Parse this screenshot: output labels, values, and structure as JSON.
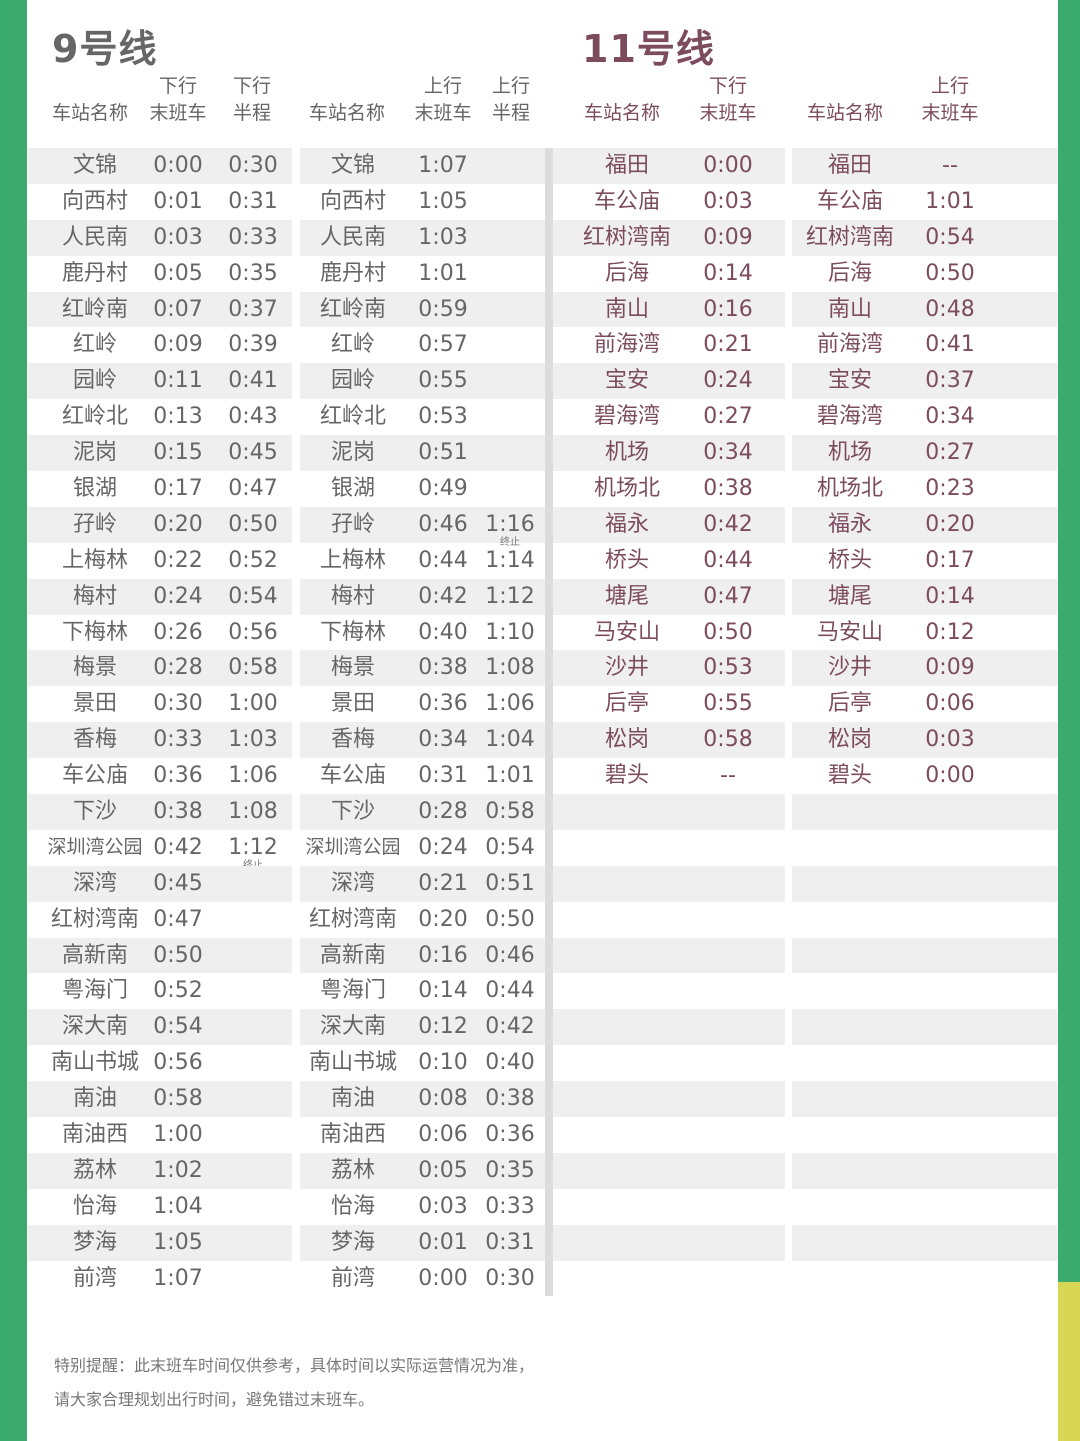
{
  "colors": {
    "green": "#3aaa6e",
    "yellow": "#d8d655",
    "line9": "#666666",
    "line11": "#7c4c5e",
    "row_shade": "#efefef"
  },
  "line9": {
    "title": "9号线",
    "down_headers": {
      "name": "车站名称",
      "last_top": "下行",
      "last": "末班车",
      "half_top": "下行",
      "half": "半程"
    },
    "up_headers": {
      "name": "车站名称",
      "last_top": "上行",
      "last": "末班车",
      "half_top": "上行",
      "half": "半程"
    },
    "terminate_label": "终止",
    "down_rows": [
      [
        "文锦",
        "0:00",
        "0:30"
      ],
      [
        "向西村",
        "0:01",
        "0:31"
      ],
      [
        "人民南",
        "0:03",
        "0:33"
      ],
      [
        "鹿丹村",
        "0:05",
        "0:35"
      ],
      [
        "红岭南",
        "0:07",
        "0:37"
      ],
      [
        "红岭",
        "0:09",
        "0:39"
      ],
      [
        "园岭",
        "0:11",
        "0:41"
      ],
      [
        "红岭北",
        "0:13",
        "0:43"
      ],
      [
        "泥岗",
        "0:15",
        "0:45"
      ],
      [
        "银湖",
        "0:17",
        "0:47"
      ],
      [
        "孖岭",
        "0:20",
        "0:50"
      ],
      [
        "上梅林",
        "0:22",
        "0:52"
      ],
      [
        "梅村",
        "0:24",
        "0:54"
      ],
      [
        "下梅林",
        "0:26",
        "0:56"
      ],
      [
        "梅景",
        "0:28",
        "0:58"
      ],
      [
        "景田",
        "0:30",
        "1:00"
      ],
      [
        "香梅",
        "0:33",
        "1:03"
      ],
      [
        "车公庙",
        "0:36",
        "1:06"
      ],
      [
        "下沙",
        "0:38",
        "1:08"
      ],
      [
        "深圳湾公园",
        "0:42",
        "1:12",
        "终止"
      ],
      [
        "深湾",
        "0:45",
        ""
      ],
      [
        "红树湾南",
        "0:47",
        ""
      ],
      [
        "高新南",
        "0:50",
        ""
      ],
      [
        "粤海门",
        "0:52",
        ""
      ],
      [
        "深大南",
        "0:54",
        ""
      ],
      [
        "南山书城",
        "0:56",
        ""
      ],
      [
        "南油",
        "0:58",
        ""
      ],
      [
        "南油西",
        "1:00",
        ""
      ],
      [
        "荔林",
        "1:02",
        ""
      ],
      [
        "怡海",
        "1:04",
        ""
      ],
      [
        "梦海",
        "1:05",
        ""
      ],
      [
        "前湾",
        "1:07",
        ""
      ]
    ],
    "up_rows": [
      [
        "文锦",
        "1:07",
        ""
      ],
      [
        "向西村",
        "1:05",
        ""
      ],
      [
        "人民南",
        "1:03",
        ""
      ],
      [
        "鹿丹村",
        "1:01",
        ""
      ],
      [
        "红岭南",
        "0:59",
        ""
      ],
      [
        "红岭",
        "0:57",
        ""
      ],
      [
        "园岭",
        "0:55",
        ""
      ],
      [
        "红岭北",
        "0:53",
        ""
      ],
      [
        "泥岗",
        "0:51",
        ""
      ],
      [
        "银湖",
        "0:49",
        ""
      ],
      [
        "孖岭",
        "0:46",
        "1:16",
        "终止"
      ],
      [
        "上梅林",
        "0:44",
        "1:14"
      ],
      [
        "梅村",
        "0:42",
        "1:12"
      ],
      [
        "下梅林",
        "0:40",
        "1:10"
      ],
      [
        "梅景",
        "0:38",
        "1:08"
      ],
      [
        "景田",
        "0:36",
        "1:06"
      ],
      [
        "香梅",
        "0:34",
        "1:04"
      ],
      [
        "车公庙",
        "0:31",
        "1:01"
      ],
      [
        "下沙",
        "0:28",
        "0:58"
      ],
      [
        "深圳湾公园",
        "0:24",
        "0:54"
      ],
      [
        "深湾",
        "0:21",
        "0:51"
      ],
      [
        "红树湾南",
        "0:20",
        "0:50"
      ],
      [
        "高新南",
        "0:16",
        "0:46"
      ],
      [
        "粤海门",
        "0:14",
        "0:44"
      ],
      [
        "深大南",
        "0:12",
        "0:42"
      ],
      [
        "南山书城",
        "0:10",
        "0:40"
      ],
      [
        "南油",
        "0:08",
        "0:38"
      ],
      [
        "南油西",
        "0:06",
        "0:36"
      ],
      [
        "荔林",
        "0:05",
        "0:35"
      ],
      [
        "怡海",
        "0:03",
        "0:33"
      ],
      [
        "梦海",
        "0:01",
        "0:31"
      ],
      [
        "前湾",
        "0:00",
        "0:30"
      ]
    ]
  },
  "line11": {
    "title": "11号线",
    "down_headers": {
      "name": "车站名称",
      "last_top": "下行",
      "last": "末班车"
    },
    "up_headers": {
      "name": "车站名称",
      "last_top": "上行",
      "last": "末班车"
    },
    "down_rows": [
      [
        "福田",
        "0:00"
      ],
      [
        "车公庙",
        "0:03"
      ],
      [
        "红树湾南",
        "0:09"
      ],
      [
        "后海",
        "0:14"
      ],
      [
        "南山",
        "0:16"
      ],
      [
        "前海湾",
        "0:21"
      ],
      [
        "宝安",
        "0:24"
      ],
      [
        "碧海湾",
        "0:27"
      ],
      [
        "机场",
        "0:34"
      ],
      [
        "机场北",
        "0:38"
      ],
      [
        "福永",
        "0:42"
      ],
      [
        "桥头",
        "0:44"
      ],
      [
        "塘尾",
        "0:47"
      ],
      [
        "马安山",
        "0:50"
      ],
      [
        "沙井",
        "0:53"
      ],
      [
        "后亭",
        "0:55"
      ],
      [
        "松岗",
        "0:58"
      ],
      [
        "碧头",
        "--"
      ]
    ],
    "up_rows": [
      [
        "福田",
        "--"
      ],
      [
        "车公庙",
        "1:01"
      ],
      [
        "红树湾南",
        "0:54"
      ],
      [
        "后海",
        "0:50"
      ],
      [
        "南山",
        "0:48"
      ],
      [
        "前海湾",
        "0:41"
      ],
      [
        "宝安",
        "0:37"
      ],
      [
        "碧海湾",
        "0:34"
      ],
      [
        "机场",
        "0:27"
      ],
      [
        "机场北",
        "0:23"
      ],
      [
        "福永",
        "0:20"
      ],
      [
        "桥头",
        "0:17"
      ],
      [
        "塘尾",
        "0:14"
      ],
      [
        "马安山",
        "0:12"
      ],
      [
        "沙井",
        "0:09"
      ],
      [
        "后亭",
        "0:06"
      ],
      [
        "松岗",
        "0:03"
      ],
      [
        "碧头",
        "0:00"
      ]
    ]
  },
  "footer": {
    "line1": "特别提醒：此末班车时间仅供参考，具体时间以实际运营情况为准，",
    "line2": "请大家合理规划出行时间，避免错过末班车。"
  }
}
